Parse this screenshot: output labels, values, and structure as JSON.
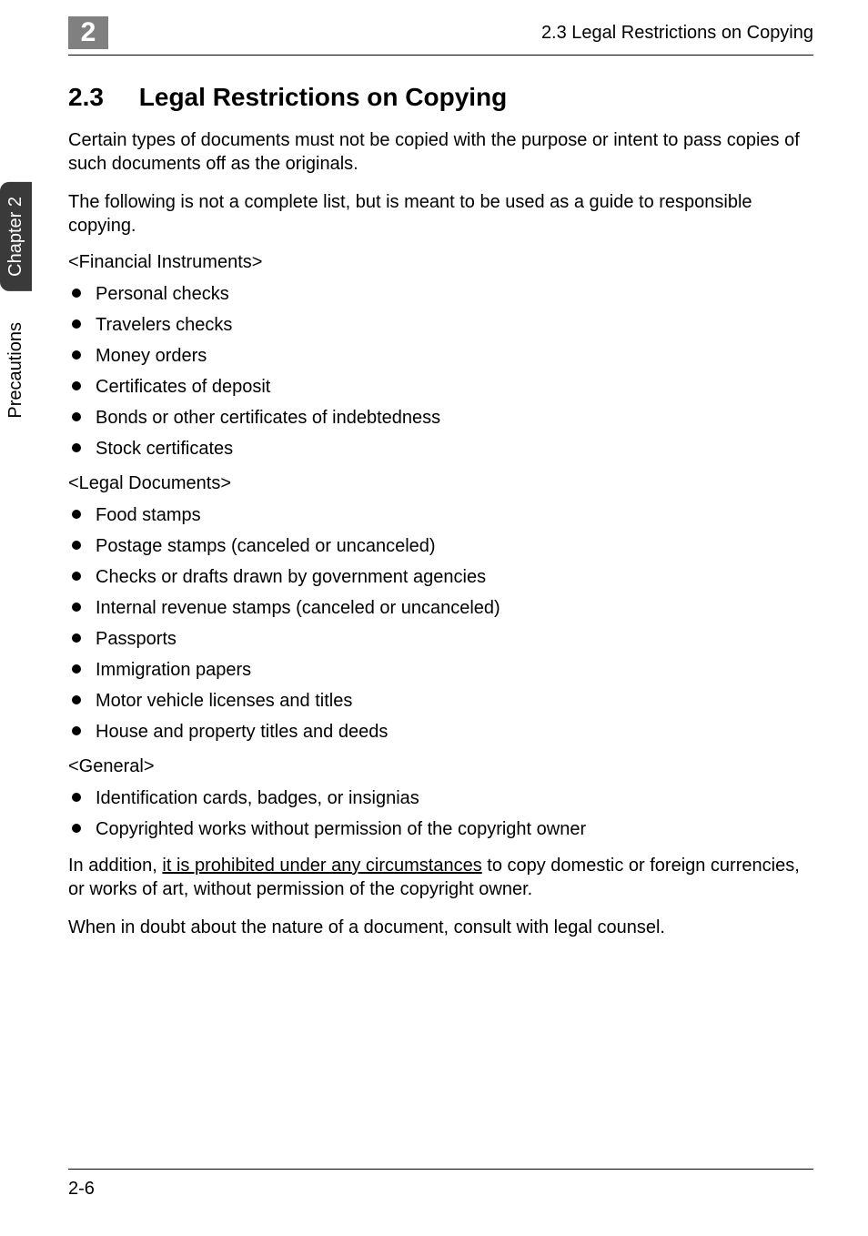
{
  "header": {
    "chapter_box": "2",
    "right_text": "2.3 Legal Restrictions on Copying"
  },
  "side_tabs": {
    "dark": "Chapter 2",
    "light": "Precautions"
  },
  "section": {
    "number": "2.3",
    "title": "Legal Restrictions on Copying"
  },
  "intro1": "Certain types of documents must not be copied with the purpose or intent to pass copies of such documents off as the originals.",
  "intro2": "The following is not a complete list, but is meant to be used as a guide to responsible copying.",
  "financial": {
    "heading": "<Financial Instruments>",
    "items": [
      "Personal checks",
      "Travelers checks",
      "Money orders",
      "Certificates of deposit",
      "Bonds or other certificates of indebtedness",
      "Stock certificates"
    ]
  },
  "legal": {
    "heading": "<Legal Documents>",
    "items": [
      "Food stamps",
      "Postage stamps (canceled or uncanceled)",
      "Checks or drafts drawn by government agencies",
      "Internal revenue stamps (canceled or uncanceled)",
      "Passports",
      "Immigration papers",
      "Motor vehicle licenses and titles",
      "House and property titles and deeds"
    ]
  },
  "general": {
    "heading": "<General>",
    "items": [
      "Identification cards, badges, or insignias",
      "Copyrighted works without permission of the copyright owner"
    ]
  },
  "addition": {
    "pre": "In addition, ",
    "underlined": "it is prohibited under any circumstances",
    "post": " to copy domestic or foreign currencies, or works of art, without permission of the copyright owner."
  },
  "closing": "When in doubt about the nature of a document, consult with legal counsel.",
  "footer": {
    "page_number": "2-6"
  }
}
